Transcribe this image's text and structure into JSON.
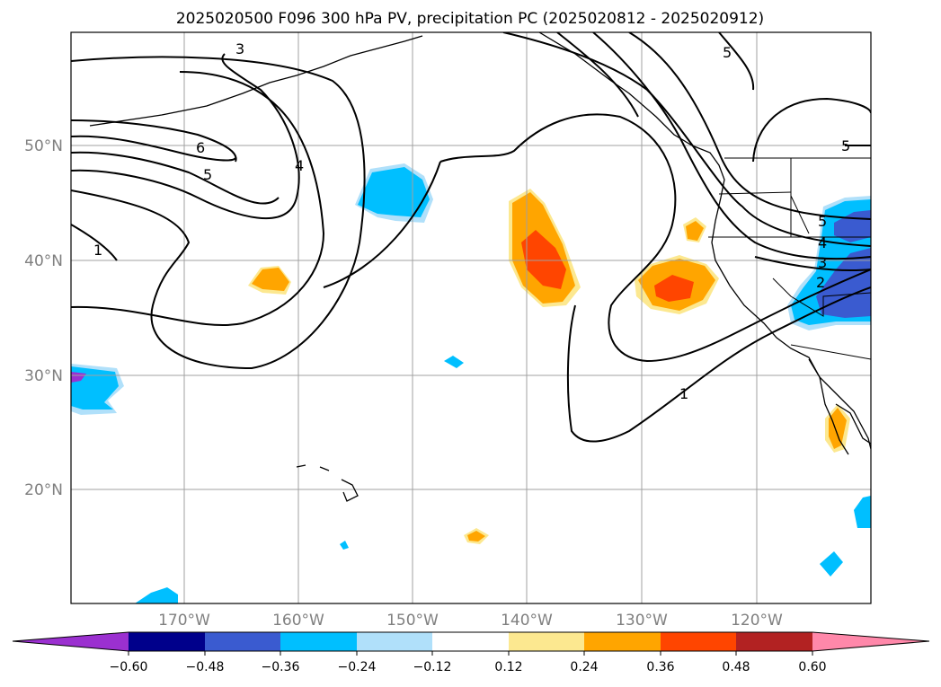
{
  "title": "2025020500 F096 300 hPa PV, precipitation PC (2025020812 - 2025020912)",
  "map": {
    "lat_labels": [
      "50°N",
      "40°N",
      "30°N",
      "20°N"
    ],
    "lon_labels": [
      "170°W",
      "160°W",
      "150°W",
      "140°W",
      "130°W",
      "120°W"
    ],
    "contour_labels": [
      "3",
      "5",
      "6",
      "5",
      "4",
      "1",
      "1",
      "5",
      "5",
      "4",
      "3",
      "2"
    ]
  },
  "colorbar": {
    "tick_labels": [
      "−0.60",
      "−0.48",
      "−0.36",
      "−0.24",
      "−0.12",
      "0.12",
      "0.24",
      "0.36",
      "0.48",
      "0.60"
    ],
    "colors": [
      "#9b30d0",
      "#00008b",
      "#3a5bd0",
      "#00bfff",
      "#b0e0fa",
      "#ffffff",
      "#fce890",
      "#ffa500",
      "#ff4500",
      "#b22222",
      "#ff88aa"
    ]
  }
}
